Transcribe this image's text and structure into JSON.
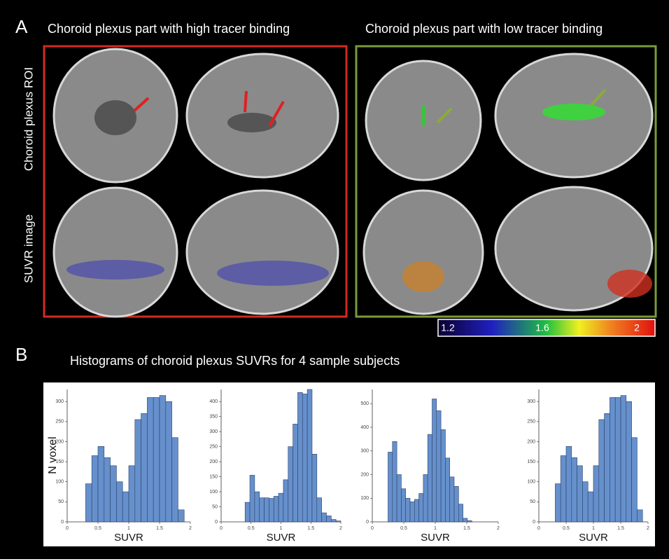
{
  "figure": {
    "panel_a": "A",
    "title_high": "Choroid plexus part with high tracer binding",
    "title_low": "Choroid plexus part with low tracer binding",
    "row_roi": "Choroid plexus ROI",
    "row_suvr": "SUVR image",
    "colorbar": {
      "lim": [
        1.2,
        2
      ],
      "ticks": [
        1.2,
        1.6,
        2
      ]
    },
    "panel_b": "B",
    "title_b": "Histograms of choroid plexus SUVRs for 4 sample subjects"
  },
  "chart_data": [
    {
      "type": "histogram",
      "ylabel": "N voxel",
      "xlabel": "SUVR",
      "color": "#6690cc",
      "bins": [
        0.3,
        0.4,
        0.5,
        0.6,
        0.7,
        0.8,
        0.9,
        1.0,
        1.1,
        1.2,
        1.3,
        1.4,
        1.5,
        1.6,
        1.7,
        1.8,
        1.9
      ],
      "values": [
        95,
        165,
        188,
        160,
        140,
        100,
        75,
        140,
        255,
        270,
        310,
        310,
        315,
        300,
        210,
        30
      ],
      "xlim": [
        0,
        2
      ],
      "xticks": [
        0,
        0.5,
        1,
        1.5,
        2
      ],
      "ylim": [
        0,
        330
      ],
      "yticks": [
        0,
        50,
        100,
        150,
        200,
        250,
        300
      ]
    },
    {
      "type": "histogram",
      "xlabel": "SUVR",
      "color": "#6690cc",
      "bins": [
        0.4,
        0.48,
        0.56,
        0.64,
        0.72,
        0.8,
        0.88,
        0.96,
        1.04,
        1.12,
        1.2,
        1.28,
        1.36,
        1.44,
        1.52,
        1.6,
        1.68,
        1.76,
        1.84,
        1.92,
        2.0
      ],
      "values": [
        65,
        155,
        100,
        80,
        80,
        78,
        85,
        95,
        140,
        250,
        325,
        430,
        425,
        440,
        225,
        80,
        30,
        20,
        8,
        3
      ],
      "xlim": [
        0,
        2
      ],
      "xticks": [
        0,
        0.5,
        1,
        1.5,
        2
      ],
      "ylim": [
        0,
        440
      ],
      "yticks": [
        0,
        50,
        100,
        150,
        200,
        250,
        300,
        350,
        400
      ]
    },
    {
      "type": "histogram",
      "xlabel": "SUVR",
      "color": "#6690cc",
      "bins": [
        0.25,
        0.32,
        0.39,
        0.46,
        0.53,
        0.6,
        0.67,
        0.74,
        0.81,
        0.88,
        0.95,
        1.02,
        1.09,
        1.16,
        1.23,
        1.3,
        1.37,
        1.44,
        1.51,
        1.58
      ],
      "values": [
        295,
        340,
        200,
        140,
        100,
        85,
        95,
        120,
        200,
        370,
        520,
        470,
        390,
        270,
        190,
        150,
        75,
        15,
        5
      ],
      "xlim": [
        0,
        2
      ],
      "xticks": [
        0,
        0.5,
        1,
        1.5,
        2
      ],
      "ylim": [
        0,
        560
      ],
      "yticks": [
        0,
        100,
        200,
        300,
        400,
        500
      ]
    },
    {
      "type": "histogram",
      "xlabel": "SUVR",
      "color": "#6690cc",
      "bins": [
        0.3,
        0.4,
        0.5,
        0.6,
        0.7,
        0.8,
        0.9,
        1.0,
        1.1,
        1.2,
        1.3,
        1.4,
        1.5,
        1.6,
        1.7,
        1.8,
        1.9
      ],
      "values": [
        95,
        165,
        188,
        160,
        140,
        100,
        75,
        140,
        255,
        270,
        310,
        310,
        315,
        300,
        210,
        30
      ],
      "xlim": [
        0,
        2
      ],
      "xticks": [
        0,
        0.5,
        1,
        1.5,
        2
      ],
      "ylim": [
        0,
        330
      ],
      "yticks": [
        0,
        50,
        100,
        150,
        200,
        250,
        300
      ]
    }
  ]
}
